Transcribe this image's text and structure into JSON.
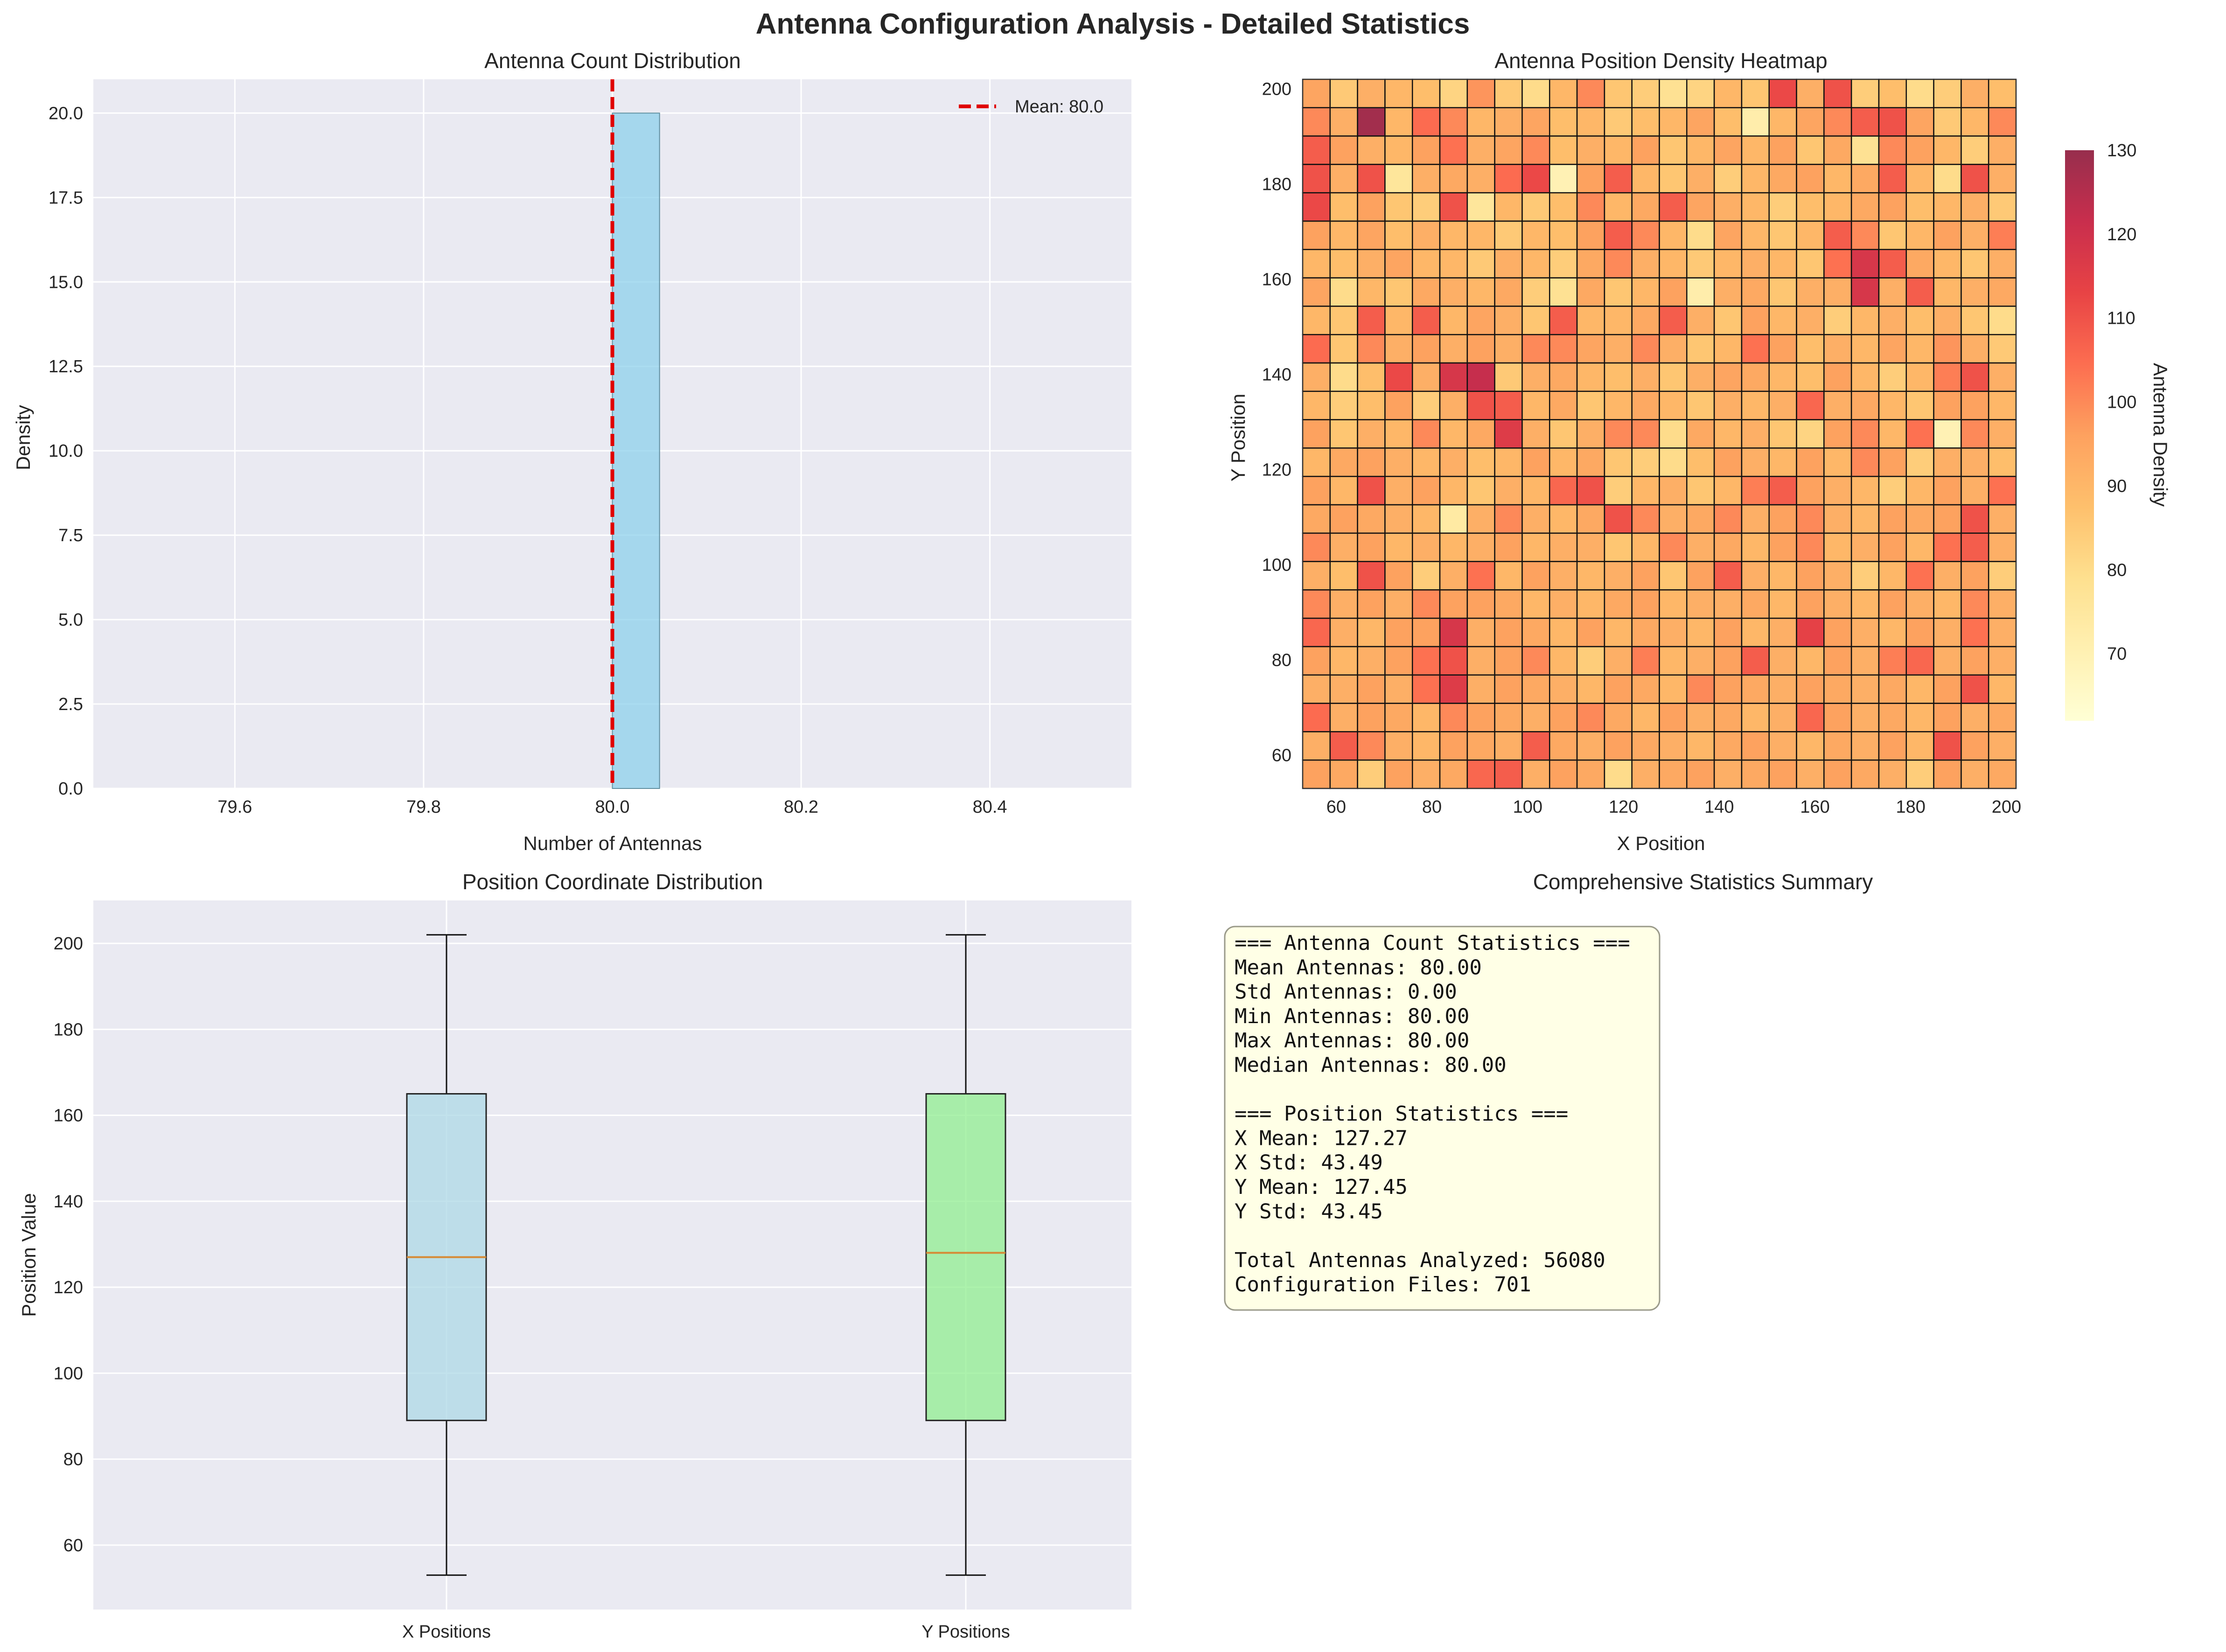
{
  "figure_title": "Antenna Configuration Analysis - Detailed Statistics",
  "colors": {
    "panel_bg": "#eaeaf2",
    "bar": "#87ceeb",
    "mean_line": "#e00000",
    "box_x": "#add8e6",
    "box_y": "#90ee90",
    "median": "#d68a35",
    "summary_bg": "#ffffe6"
  },
  "chart_data": [
    {
      "type": "bar",
      "title": "Antenna Count Distribution",
      "xlabel": "Number of Antennas",
      "ylabel": "Density",
      "xlim": [
        79.45,
        80.55
      ],
      "ylim": [
        0,
        21
      ],
      "xticks": [
        "79.6",
        "79.8",
        "80.0",
        "80.2",
        "80.4"
      ],
      "yticks": [
        "0.0",
        "2.5",
        "5.0",
        "7.5",
        "10.0",
        "12.5",
        "15.0",
        "17.5",
        "20.0"
      ],
      "bars": [
        {
          "x0": 80.0,
          "x1": 80.05,
          "value": 20.0
        }
      ],
      "mean": 80.0,
      "legend": {
        "label": "Mean: 80.0",
        "placement": "top-right"
      },
      "grid": true
    },
    {
      "type": "heatmap",
      "title": "Antenna Position Density Heatmap",
      "xlabel": "X Position",
      "ylabel": "Y Position",
      "xlim": [
        53,
        202
      ],
      "ylim": [
        53,
        202
      ],
      "xticks": [
        "60",
        "80",
        "100",
        "120",
        "140",
        "160",
        "180",
        "200"
      ],
      "yticks": [
        "60",
        "80",
        "100",
        "120",
        "140",
        "160",
        "180",
        "200"
      ],
      "colorbar": {
        "label": "Antenna Density",
        "min": 62,
        "max": 130,
        "ticks": [
          "70",
          "80",
          "90",
          "100",
          "110",
          "120",
          "130"
        ],
        "colormap": "YlOrRd"
      },
      "rows_top_to_bottom": [
        [
          95,
          85,
          92,
          90,
          88,
          82,
          98,
          85,
          80,
          90,
          100,
          86,
          84,
          78,
          82,
          90,
          86,
          112,
          92,
          110,
          84,
          88,
          80,
          84,
          92,
          88
        ],
        [
          100,
          92,
          128,
          90,
          105,
          100,
          90,
          92,
          95,
          88,
          90,
          85,
          88,
          90,
          95,
          88,
          72,
          90,
          95,
          100,
          108,
          110,
          95,
          85,
          90,
          100
        ],
        [
          108,
          96,
          92,
          90,
          96,
          104,
          92,
          95,
          100,
          88,
          92,
          90,
          96,
          86,
          90,
          95,
          90,
          96,
          86,
          94,
          78,
          100,
          96,
          90,
          84,
          92
        ],
        [
          110,
          92,
          110,
          76,
          92,
          94,
          92,
          105,
          112,
          70,
          96,
          108,
          90,
          86,
          92,
          84,
          90,
          94,
          96,
          90,
          94,
          108,
          90,
          80,
          110,
          92
        ],
        [
          112,
          88,
          96,
          86,
          84,
          110,
          76,
          90,
          85,
          88,
          100,
          90,
          94,
          108,
          95,
          92,
          90,
          84,
          88,
          90,
          94,
          96,
          88,
          90,
          92,
          85
        ],
        [
          96,
          90,
          95,
          88,
          92,
          90,
          90,
          85,
          90,
          88,
          96,
          108,
          100,
          90,
          80,
          95,
          90,
          86,
          90,
          108,
          100,
          86,
          90,
          96,
          92,
          102
        ],
        [
          90,
          88,
          92,
          95,
          90,
          90,
          85,
          92,
          90,
          84,
          94,
          100,
          92,
          90,
          85,
          90,
          92,
          90,
          86,
          104,
          118,
          108,
          94,
          90,
          86,
          92
        ],
        [
          95,
          80,
          90,
          86,
          94,
          92,
          90,
          94,
          84,
          78,
          94,
          86,
          90,
          96,
          72,
          92,
          94,
          86,
          92,
          92,
          118,
          92,
          108,
          90,
          92,
          94
        ],
        [
          90,
          86,
          108,
          90,
          108,
          90,
          95,
          92,
          86,
          108,
          90,
          90,
          94,
          108,
          92,
          86,
          96,
          90,
          92,
          84,
          90,
          92,
          88,
          92,
          86,
          80
        ],
        [
          105,
          86,
          100,
          92,
          96,
          92,
          96,
          92,
          100,
          100,
          95,
          92,
          100,
          92,
          86,
          90,
          104,
          96,
          88,
          92,
          90,
          95,
          90,
          98,
          92,
          85
        ],
        [
          92,
          80,
          88,
          112,
          92,
          118,
          122,
          85,
          92,
          94,
          90,
          88,
          92,
          86,
          92,
          95,
          94,
          90,
          88,
          96,
          90,
          84,
          90,
          102,
          110,
          92
        ],
        [
          90,
          84,
          88,
          96,
          84,
          92,
          110,
          108,
          90,
          94,
          86,
          90,
          94,
          90,
          86,
          92,
          90,
          92,
          106,
          92,
          94,
          90,
          86,
          96,
          96,
          90
        ],
        [
          96,
          86,
          92,
          90,
          100,
          90,
          94,
          116,
          92,
          86,
          92,
          100,
          100,
          80,
          94,
          90,
          92,
          86,
          82,
          96,
          100,
          90,
          104,
          70,
          100,
          92
        ],
        [
          90,
          94,
          96,
          92,
          90,
          92,
          88,
          90,
          96,
          90,
          94,
          86,
          84,
          80,
          88,
          96,
          92,
          90,
          96,
          90,
          100,
          96,
          84,
          92,
          92,
          88
        ],
        [
          96,
          90,
          110,
          92,
          96,
          90,
          86,
          92,
          90,
          106,
          110,
          84,
          90,
          92,
          86,
          90,
          102,
          108,
          96,
          92,
          90,
          84,
          90,
          96,
          92,
          104
        ],
        [
          94,
          96,
          94,
          92,
          90,
          74,
          92,
          100,
          92,
          90,
          94,
          110,
          100,
          92,
          94,
          100,
          92,
          96,
          100,
          92,
          90,
          96,
          94,
          96,
          110,
          92
        ],
        [
          100,
          92,
          96,
          90,
          92,
          90,
          92,
          96,
          90,
          92,
          92,
          86,
          90,
          100,
          92,
          94,
          90,
          96,
          100,
          90,
          92,
          96,
          90,
          104,
          108,
          92
        ],
        [
          92,
          88,
          110,
          96,
          84,
          92,
          104,
          90,
          96,
          92,
          90,
          92,
          96,
          86,
          96,
          108,
          92,
          90,
          96,
          92,
          84,
          90,
          104,
          92,
          96,
          84
        ],
        [
          100,
          92,
          96,
          92,
          100,
          96,
          96,
          94,
          90,
          92,
          90,
          94,
          96,
          90,
          92,
          92,
          94,
          90,
          96,
          92,
          90,
          96,
          92,
          90,
          100,
          92
        ],
        [
          106,
          92,
          90,
          96,
          96,
          118,
          92,
          96,
          94,
          90,
          96,
          90,
          94,
          92,
          90,
          96,
          90,
          92,
          114,
          96,
          92,
          90,
          96,
          92,
          104,
          92
        ],
        [
          96,
          90,
          92,
          96,
          104,
          110,
          92,
          96,
          100,
          90,
          84,
          92,
          102,
          90,
          92,
          96,
          108,
          92,
          90,
          96,
          92,
          102,
          106,
          92,
          96,
          92
        ],
        [
          92,
          92,
          96,
          92,
          104,
          116,
          92,
          96,
          94,
          92,
          90,
          96,
          94,
          90,
          100,
          96,
          94,
          92,
          96,
          94,
          92,
          94,
          90,
          96,
          110,
          90
        ],
        [
          105,
          92,
          96,
          94,
          90,
          100,
          96,
          94,
          92,
          96,
          100,
          94,
          90,
          96,
          92,
          94,
          90,
          92,
          106,
          96,
          92,
          94,
          90,
          96,
          92,
          94
        ],
        [
          92,
          108,
          100,
          92,
          90,
          96,
          94,
          92,
          108,
          94,
          92,
          96,
          94,
          92,
          90,
          94,
          96,
          92,
          90,
          94,
          92,
          96,
          90,
          110,
          96,
          92
        ],
        [
          96,
          94,
          84,
          96,
          92,
          94,
          106,
          108,
          92,
          96,
          94,
          80,
          92,
          94,
          96,
          92,
          94,
          96,
          92,
          96,
          94,
          92,
          84,
          96,
          92,
          94
        ]
      ],
      "grid": false
    },
    {
      "type": "box",
      "title": "Position Coordinate Distribution",
      "xlabel": "",
      "ylabel": "Position Value",
      "ylim": [
        45,
        210
      ],
      "yticks": [
        "60",
        "80",
        "100",
        "120",
        "140",
        "160",
        "180",
        "200"
      ],
      "boxes": [
        {
          "label": "X Positions",
          "min": 53,
          "q1": 89,
          "median": 127,
          "q3": 165,
          "max": 202
        },
        {
          "label": "Y Positions",
          "min": 53,
          "q1": 89,
          "median": 128,
          "q3": 165,
          "max": 202
        }
      ],
      "grid": true
    }
  ],
  "summary": {
    "title": "Comprehensive Statistics Summary",
    "lines": [
      "=== Antenna Count Statistics ===",
      "Mean Antennas: 80.00",
      "Std Antennas: 0.00",
      "Min Antennas: 80.00",
      "Max Antennas: 80.00",
      "Median Antennas: 80.00",
      "",
      "=== Position Statistics ===",
      "X Mean: 127.27",
      "X Std: 43.49",
      "Y Mean: 127.45",
      "Y Std: 43.45",
      "",
      "Total Antennas Analyzed: 56080",
      "Configuration Files: 701"
    ]
  }
}
